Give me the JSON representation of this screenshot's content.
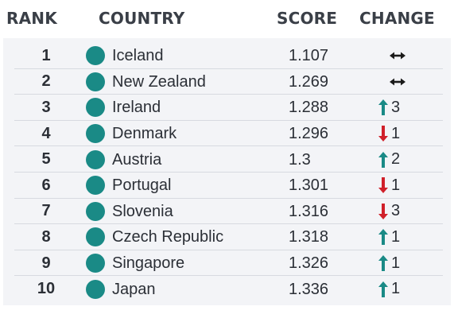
{
  "headers": {
    "rank": "RANK",
    "country": "COUNTRY",
    "score": "SCORE",
    "change": "CHANGE"
  },
  "colors": {
    "dot": "#1a8a86",
    "up": "#1a8a86",
    "down": "#d0202a",
    "flat": "#1a1a1a"
  },
  "rows": [
    {
      "rank": "1",
      "country": "Iceland",
      "score": "1.107",
      "direction": "flat",
      "change": ""
    },
    {
      "rank": "2",
      "country": "New Zealand",
      "score": "1.269",
      "direction": "flat",
      "change": ""
    },
    {
      "rank": "3",
      "country": "Ireland",
      "score": "1.288",
      "direction": "up",
      "change": "3"
    },
    {
      "rank": "4",
      "country": "Denmark",
      "score": "1.296",
      "direction": "down",
      "change": "1"
    },
    {
      "rank": "5",
      "country": "Austria",
      "score": "1.3",
      "direction": "up",
      "change": "2"
    },
    {
      "rank": "6",
      "country": "Portugal",
      "score": "1.301",
      "direction": "down",
      "change": "1"
    },
    {
      "rank": "7",
      "country": "Slovenia",
      "score": "1.316",
      "direction": "down",
      "change": "3"
    },
    {
      "rank": "8",
      "country": "Czech Republic",
      "score": "1.318",
      "direction": "up",
      "change": "1"
    },
    {
      "rank": "9",
      "country": "Singapore",
      "score": "1.326",
      "direction": "up",
      "change": "1"
    },
    {
      "rank": "10",
      "country": "Japan",
      "score": "1.336",
      "direction": "up",
      "change": "1"
    }
  ]
}
